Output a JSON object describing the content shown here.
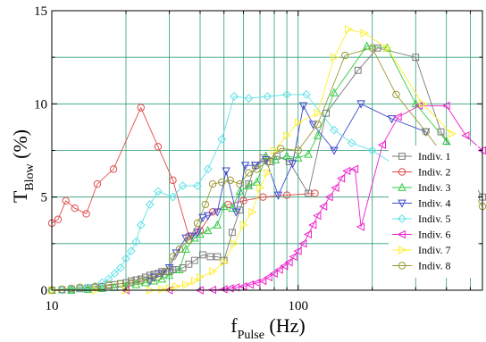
{
  "chart_data": {
    "type": "scatter",
    "x_scale": "log",
    "xlim": [
      10,
      560
    ],
    "ylim": [
      0,
      15
    ],
    "grid": true,
    "legend_position": "right",
    "x_ticks": [
      {
        "value": 10,
        "label": "10"
      },
      {
        "value": 100,
        "label": "100"
      }
    ],
    "y_ticks": [
      {
        "value": 0,
        "label": "0"
      },
      {
        "value": 5,
        "label": "5"
      },
      {
        "value": 10,
        "label": "10"
      },
      {
        "value": 15,
        "label": "15"
      }
    ],
    "xlabel": {
      "main": "f",
      "sub": "Pulse",
      "rest": " (Hz)"
    },
    "ylabel": {
      "main": "T",
      "sub": "Blow",
      "rest": " (%)"
    },
    "series": [
      {
        "name": "Indiv. 1",
        "marker": "square",
        "color": "#7a7a7a",
        "points": [
          [
            10,
            0
          ],
          [
            11,
            0.02
          ],
          [
            12,
            0.05
          ],
          [
            13,
            0.08
          ],
          [
            14,
            0.12
          ],
          [
            15,
            0.15
          ],
          [
            16,
            0.2
          ],
          [
            17,
            0.25
          ],
          [
            18,
            0.3
          ],
          [
            19,
            0.35
          ],
          [
            20,
            0.4
          ],
          [
            21,
            0.5
          ],
          [
            22,
            0.55
          ],
          [
            23,
            0.6
          ],
          [
            24,
            0.7
          ],
          [
            25,
            0.8
          ],
          [
            26,
            0.85
          ],
          [
            27,
            0.9
          ],
          [
            28,
            1.0
          ],
          [
            29,
            1.0
          ],
          [
            30,
            1.0
          ],
          [
            31,
            1.1
          ],
          [
            32,
            1.1
          ],
          [
            34,
            1.2
          ],
          [
            36,
            1.4
          ],
          [
            38,
            1.6
          ],
          [
            41,
            1.9
          ],
          [
            44,
            1.8
          ],
          [
            47,
            1.8
          ],
          [
            50,
            1.6
          ],
          [
            54,
            3.1
          ],
          [
            58,
            4.3
          ],
          [
            63,
            5.7
          ],
          [
            67,
            6.7
          ],
          [
            72,
            7.1
          ],
          [
            77,
            6.9
          ],
          [
            82,
            7.2
          ],
          [
            92,
            6.9
          ],
          [
            110,
            5.2
          ],
          [
            130,
            9.5
          ],
          [
            175,
            11.8
          ],
          [
            210,
            13.0
          ],
          [
            300,
            12.5
          ],
          [
            380,
            8.5
          ],
          [
            560,
            5.0
          ]
        ]
      },
      {
        "name": "Indiv. 2",
        "marker": "circle",
        "color": "#e04a4a",
        "points": [
          [
            10,
            3.6
          ],
          [
            10.6,
            3.8
          ],
          [
            11.4,
            4.8
          ],
          [
            12.4,
            4.4
          ],
          [
            13.8,
            4.1
          ],
          [
            15.3,
            5.7
          ],
          [
            17.8,
            6.5
          ],
          [
            23,
            9.8
          ],
          [
            27,
            7.7
          ],
          [
            31,
            5.9
          ],
          [
            36,
            2.9
          ],
          [
            40,
            3.2
          ],
          [
            45,
            4.2
          ],
          [
            52,
            4.6
          ],
          [
            60,
            4.8
          ],
          [
            72,
            5.0
          ],
          [
            90,
            5.1
          ],
          [
            117,
            5.2
          ]
        ]
      },
      {
        "name": "Indiv. 3",
        "marker": "triangle-up",
        "color": "#2ecc40",
        "points": [
          [
            10,
            0
          ],
          [
            12,
            0
          ],
          [
            14,
            0.05
          ],
          [
            16,
            0.1
          ],
          [
            18,
            0.15
          ],
          [
            20,
            0.2
          ],
          [
            22,
            0.3
          ],
          [
            24,
            0.4
          ],
          [
            26,
            0.5
          ],
          [
            28,
            0.6
          ],
          [
            30,
            0.8
          ],
          [
            33,
            1.1
          ],
          [
            35,
            2.2
          ],
          [
            38,
            2.8
          ],
          [
            40,
            3.0
          ],
          [
            43,
            3.2
          ],
          [
            47,
            3.5
          ],
          [
            50,
            4.5
          ],
          [
            54,
            4.4
          ],
          [
            58,
            5.3
          ],
          [
            63,
            5.6
          ],
          [
            68,
            5.8
          ],
          [
            74,
            7.2
          ],
          [
            81,
            7.0
          ],
          [
            90,
            7.2
          ],
          [
            100,
            7.1
          ],
          [
            110,
            7.3
          ],
          [
            120,
            8.3
          ],
          [
            140,
            10.6
          ],
          [
            190,
            13.1
          ],
          [
            230,
            13.0
          ],
          [
            300,
            10.0
          ],
          [
            400,
            8.0
          ]
        ]
      },
      {
        "name": "Indiv. 4",
        "marker": "triangle-down",
        "color": "#3f48cc",
        "points": [
          [
            25,
            0.5
          ],
          [
            26,
            0.7
          ],
          [
            28,
            0.9
          ],
          [
            30,
            1.2
          ],
          [
            32,
            2.0
          ],
          [
            35,
            2.8
          ],
          [
            37,
            2.9
          ],
          [
            39,
            3.1
          ],
          [
            41,
            3.9
          ],
          [
            43,
            4.0
          ],
          [
            47,
            4.2
          ],
          [
            51,
            6.4
          ],
          [
            56,
            4.2
          ],
          [
            61,
            6.7
          ],
          [
            67,
            6.7
          ],
          [
            74,
            7.0
          ],
          [
            83,
            5.1
          ],
          [
            95,
            6.8
          ],
          [
            105,
            9.9
          ],
          [
            115,
            8.9
          ],
          [
            140,
            7.5
          ],
          [
            180,
            10.0
          ],
          [
            240,
            9.2
          ],
          [
            330,
            8.5
          ]
        ]
      },
      {
        "name": "Indiv. 5",
        "marker": "diamond",
        "color": "#5fe1e8",
        "points": [
          [
            10,
            0
          ],
          [
            11,
            0
          ],
          [
            12,
            0.05
          ],
          [
            13,
            0.1
          ],
          [
            14,
            0.15
          ],
          [
            15,
            0.2
          ],
          [
            16,
            0.4
          ],
          [
            17,
            0.6
          ],
          [
            18,
            0.9
          ],
          [
            19,
            1.2
          ],
          [
            20,
            1.7
          ],
          [
            21,
            2.1
          ],
          [
            22,
            2.6
          ],
          [
            23,
            3.5
          ],
          [
            25,
            4.6
          ],
          [
            27,
            5.3
          ],
          [
            31,
            5.0
          ],
          [
            34,
            5.6
          ],
          [
            39,
            5.6
          ],
          [
            43,
            6.5
          ],
          [
            49,
            8.1
          ],
          [
            55,
            10.4
          ],
          [
            63,
            10.3
          ],
          [
            75,
            10.4
          ],
          [
            90,
            10.5
          ],
          [
            108,
            10.5
          ],
          [
            140,
            8.6
          ],
          [
            165,
            7.9
          ],
          [
            200,
            7.5
          ],
          [
            300,
            6.0
          ],
          [
            450,
            5.5
          ]
        ]
      },
      {
        "name": "Indiv. 6",
        "marker": "triangle-left",
        "color": "#ee22cc",
        "points": [
          [
            20,
            0
          ],
          [
            30,
            0
          ],
          [
            40,
            0
          ],
          [
            45,
            0.02
          ],
          [
            50,
            0.05
          ],
          [
            53,
            0.1
          ],
          [
            56,
            0.15
          ],
          [
            60,
            0.2
          ],
          [
            64,
            0.3
          ],
          [
            68,
            0.4
          ],
          [
            72,
            0.5
          ],
          [
            76,
            0.7
          ],
          [
            80,
            0.9
          ],
          [
            84,
            1.1
          ],
          [
            88,
            1.3
          ],
          [
            92,
            1.5
          ],
          [
            96,
            1.8
          ],
          [
            100,
            2.1
          ],
          [
            105,
            2.5
          ],
          [
            110,
            3.0
          ],
          [
            115,
            3.5
          ],
          [
            120,
            4.0
          ],
          [
            127,
            4.5
          ],
          [
            134,
            5.0
          ],
          [
            142,
            5.5
          ],
          [
            150,
            6.0
          ],
          [
            158,
            6.4
          ],
          [
            170,
            6.5
          ],
          [
            180,
            3.4
          ],
          [
            220,
            7.8
          ],
          [
            255,
            9.3
          ],
          [
            310,
            9.9
          ],
          [
            400,
            9.9
          ],
          [
            480,
            8.3
          ],
          [
            560,
            7.5
          ]
        ]
      },
      {
        "name": "Indiv. 7",
        "marker": "triangle-right",
        "color": "#ffee33",
        "points": [
          [
            10,
            0
          ],
          [
            15,
            0
          ],
          [
            20,
            0
          ],
          [
            25,
            0
          ],
          [
            28,
            0.05
          ],
          [
            30,
            0.1
          ],
          [
            32,
            0.2
          ],
          [
            35,
            0.3
          ],
          [
            38,
            0.5
          ],
          [
            40,
            0.7
          ],
          [
            45,
            1.0
          ],
          [
            50,
            1.5
          ],
          [
            55,
            2.5
          ],
          [
            60,
            3.5
          ],
          [
            65,
            4.2
          ],
          [
            70,
            5.5
          ],
          [
            75,
            6.3
          ],
          [
            80,
            7.5
          ],
          [
            90,
            8.3
          ],
          [
            100,
            9.0
          ],
          [
            120,
            9.5
          ],
          [
            140,
            12.5
          ],
          [
            160,
            14.0
          ],
          [
            185,
            13.8
          ],
          [
            230,
            13.0
          ],
          [
            320,
            10.0
          ],
          [
            420,
            8.4
          ]
        ]
      },
      {
        "name": "Indiv. 8",
        "marker": "circle",
        "color": "#999933",
        "points": [
          [
            10,
            0
          ],
          [
            11,
            0.05
          ],
          [
            12,
            0.1
          ],
          [
            13,
            0.15
          ],
          [
            15,
            0.2
          ],
          [
            17,
            0.3
          ],
          [
            19,
            0.35
          ],
          [
            21,
            0.4
          ],
          [
            23,
            0.5
          ],
          [
            25,
            0.6
          ],
          [
            27,
            0.7
          ],
          [
            29,
            1.0
          ],
          [
            31,
            1.8
          ],
          [
            33,
            2.2
          ],
          [
            36,
            2.7
          ],
          [
            39,
            3.6
          ],
          [
            42,
            4.6
          ],
          [
            45,
            5.7
          ],
          [
            49,
            5.8
          ],
          [
            53,
            5.9
          ],
          [
            58,
            5.7
          ],
          [
            63,
            6.3
          ],
          [
            68,
            6.5
          ],
          [
            75,
            6.9
          ],
          [
            85,
            7.6
          ],
          [
            100,
            7.5
          ],
          [
            120,
            8.9
          ],
          [
            155,
            12.6
          ],
          [
            200,
            13.0
          ],
          [
            250,
            10.5
          ],
          [
            330,
            8.5
          ],
          [
            560,
            4.5
          ]
        ]
      }
    ]
  }
}
